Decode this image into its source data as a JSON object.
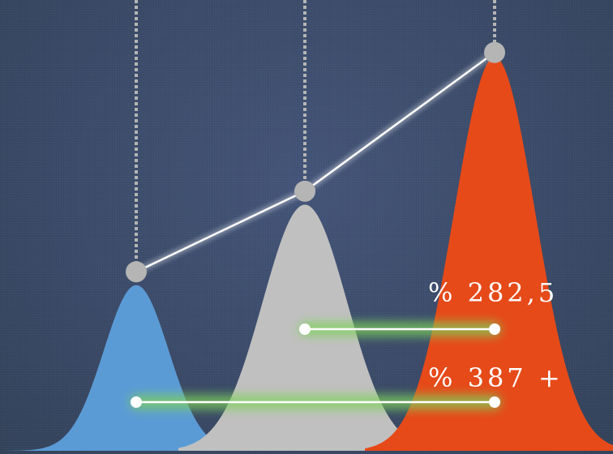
{
  "chart_data": {
    "type": "area",
    "title": "",
    "xlabel": "",
    "ylabel": "",
    "grid": false,
    "series": [
      {
        "color": "#5b9bd5",
        "peak": 0.37
      },
      {
        "color": "#c0c0c0",
        "peak": 0.55
      },
      {
        "color": "#e64a19",
        "peak": 0.88
      }
    ],
    "trend_points": [
      0.4,
      0.58,
      0.89
    ],
    "trend_color": "#ffffff",
    "marker_color": "#b5b5b5",
    "comparisons": [
      {
        "label": "% 282,5",
        "from": 1,
        "to": 2,
        "color": "#7fd35a"
      },
      {
        "label": "% 387 +",
        "from": 0,
        "to": 2,
        "color": "#7fd35a"
      }
    ]
  }
}
